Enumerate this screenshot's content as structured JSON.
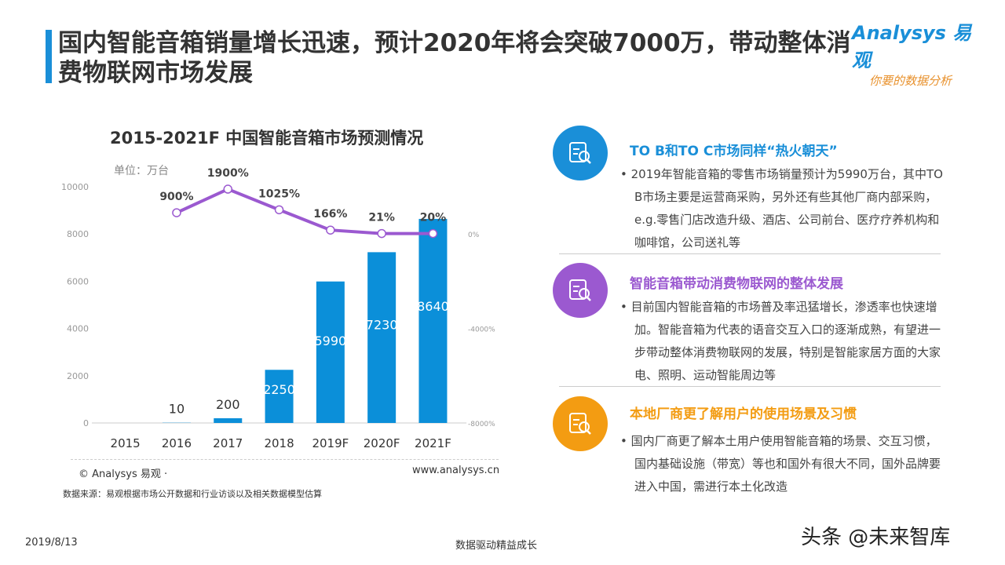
{
  "header": {
    "title": "国内智能音箱销量增长迅速，预计2020年将会突破7000万，带动整体消费物联网市场发展",
    "logo_text": "Analysys 易观",
    "logo_slogan": "你要的数据分析"
  },
  "colors": {
    "accent": "#1a8fd8",
    "bar": "#0b8fd9",
    "line": "#9b59d0",
    "purple": "#9b59d0",
    "orange": "#f39c12"
  },
  "chart_data": {
    "type": "bar+line",
    "title": "2015-2021F 中国智能音箱市场预测情况",
    "unit_label": "单位：万台",
    "categories": [
      "2015",
      "2016",
      "2017",
      "2018",
      "2019F",
      "2020F",
      "2021F"
    ],
    "series": [
      {
        "type": "bar",
        "values": [
          0,
          10,
          200,
          2250,
          5990,
          7230,
          8640
        ],
        "labels": [
          "",
          "10",
          "200",
          "2250",
          "5990",
          "7230",
          "8640"
        ]
      },
      {
        "type": "line",
        "axis": "right",
        "values": [
          null,
          900,
          1900,
          1025,
          166,
          21,
          20
        ],
        "labels": [
          "",
          "900%",
          "1900%",
          "1025%",
          "166%",
          "21%",
          "20%"
        ]
      }
    ],
    "ylim": [
      0,
      10000
    ],
    "yticks": [
      "0",
      "2000",
      "4000",
      "6000",
      "8000",
      "10000"
    ],
    "y2lim": [
      -8000,
      2000
    ],
    "y2ticks": [
      "-8000%",
      "-4000%",
      "0%"
    ],
    "grid": false,
    "copyright": "© Analysys 易观 ·",
    "website": "www.analysys.cn",
    "source": "数据来源：易观根据市场公开数据和行业访谈以及相关数据模型估算"
  },
  "sections": [
    {
      "icon": "document-search-icon",
      "heading": "TO B和TO C市场同样“热火朝天”",
      "text": "• 2019年智能音箱的零售市场销量预计为5990万台，其中TO B市场主要是运营商采购，另外还有些其他厂商内部采购，e.g.零售门店改造升级、酒店、公司前台、医疗疗养机构和咖啡馆，公司送礼等"
    },
    {
      "icon": "document-search-icon",
      "heading": "智能音箱带动消费物联网的整体发展",
      "text": "• 目前国内智能音箱的市场普及率迅猛增长，渗透率也快速增加。智能音箱为代表的语音交互入口的逐渐成熟，有望进一步带动整体消费物联网的发展，特别是智能家居方面的大家电、照明、运动智能周边等"
    },
    {
      "icon": "document-search-icon",
      "heading": "本地厂商更了解用户的使用场景及习惯",
      "text": "• 国内厂商更了解本土用户使用智能音箱的场景、交互习惯，国内基础设施（带宽）等也和国外有很大不同，国外品牌要进入中国，需进行本土化改造"
    }
  ],
  "footer": {
    "date": "2019/8/13",
    "slogan": "数据驱动精益成长",
    "watermark": "头条 @未来智库"
  }
}
